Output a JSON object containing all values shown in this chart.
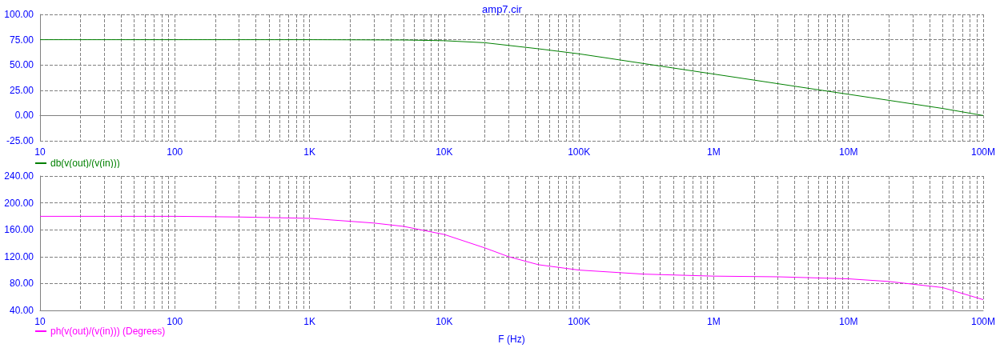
{
  "chart_data": [
    {
      "type": "line",
      "title": "amp7.cir",
      "log": "x",
      "grid": true,
      "legend": "bottom left",
      "marker": "none",
      "line_style": "solid",
      "x": [
        10,
        100,
        1000,
        5000,
        10000,
        20000,
        50000,
        100000,
        200000,
        500000,
        1000000,
        2000000,
        5000000,
        10000000,
        20000000,
        50000000,
        100000000
      ],
      "series": [
        {
          "name": "db(v(out)/(v(in)))",
          "color": "#008000",
          "values": [
            75,
            75,
            75,
            74.7,
            74,
            72,
            66,
            61,
            55,
            47,
            41,
            35,
            27,
            21,
            15,
            7,
            0
          ]
        }
      ],
      "xlim": [
        10,
        100000000
      ],
      "xticks": [
        {
          "value": 10,
          "label": "10"
        },
        {
          "value": 20,
          "label": null
        },
        {
          "value": 30,
          "label": null
        },
        {
          "value": 40,
          "label": null
        },
        {
          "value": 50,
          "label": null
        },
        {
          "value": 60,
          "label": null
        },
        {
          "value": 70,
          "label": null
        },
        {
          "value": 80,
          "label": null
        },
        {
          "value": 90,
          "label": null
        },
        {
          "value": 100,
          "label": "100"
        },
        {
          "value": 200,
          "label": null
        },
        {
          "value": 300,
          "label": null
        },
        {
          "value": 400,
          "label": null
        },
        {
          "value": 500,
          "label": null
        },
        {
          "value": 600,
          "label": null
        },
        {
          "value": 700,
          "label": null
        },
        {
          "value": 800,
          "label": null
        },
        {
          "value": 900,
          "label": null
        },
        {
          "value": 1000,
          "label": "1K"
        },
        {
          "value": 2000,
          "label": null
        },
        {
          "value": 3000,
          "label": null
        },
        {
          "value": 4000,
          "label": null
        },
        {
          "value": 5000,
          "label": null
        },
        {
          "value": 6000,
          "label": null
        },
        {
          "value": 7000,
          "label": null
        },
        {
          "value": 8000,
          "label": null
        },
        {
          "value": 9000,
          "label": null
        },
        {
          "value": 10000,
          "label": "10K"
        },
        {
          "value": 20000,
          "label": null
        },
        {
          "value": 30000,
          "label": null
        },
        {
          "value": 40000,
          "label": null
        },
        {
          "value": 50000,
          "label": null
        },
        {
          "value": 60000,
          "label": null
        },
        {
          "value": 70000,
          "label": null
        },
        {
          "value": 80000,
          "label": null
        },
        {
          "value": 90000,
          "label": null
        },
        {
          "value": 100000,
          "label": "100K"
        },
        {
          "value": 200000,
          "label": null
        },
        {
          "value": 300000,
          "label": null
        },
        {
          "value": 400000,
          "label": null
        },
        {
          "value": 500000,
          "label": null
        },
        {
          "value": 600000,
          "label": null
        },
        {
          "value": 700000,
          "label": null
        },
        {
          "value": 800000,
          "label": null
        },
        {
          "value": 900000,
          "label": null
        },
        {
          "value": 1000000,
          "label": "1M"
        },
        {
          "value": 2000000,
          "label": null
        },
        {
          "value": 3000000,
          "label": null
        },
        {
          "value": 4000000,
          "label": null
        },
        {
          "value": 5000000,
          "label": null
        },
        {
          "value": 6000000,
          "label": null
        },
        {
          "value": 7000000,
          "label": null
        },
        {
          "value": 8000000,
          "label": null
        },
        {
          "value": 9000000,
          "label": null
        },
        {
          "value": 10000000,
          "label": "10M"
        },
        {
          "value": 20000000,
          "label": null
        },
        {
          "value": 30000000,
          "label": null
        },
        {
          "value": 40000000,
          "label": null
        },
        {
          "value": 50000000,
          "label": null
        },
        {
          "value": 60000000,
          "label": null
        },
        {
          "value": 70000000,
          "label": null
        },
        {
          "value": 80000000,
          "label": null
        },
        {
          "value": 90000000,
          "label": null
        },
        {
          "value": 100000000,
          "label": "100M"
        }
      ],
      "ylim": [
        -25,
        100
      ],
      "yticks": [
        {
          "value": -25,
          "label": "-25.00"
        },
        {
          "value": 0,
          "label": "0.00"
        },
        {
          "value": 25,
          "label": "25.00"
        },
        {
          "value": 50,
          "label": "50.00"
        },
        {
          "value": 75,
          "label": "75.00"
        },
        {
          "value": 100,
          "label": "100.00"
        }
      ]
    },
    {
      "type": "line",
      "xlabel": "F (Hz)",
      "log": "x",
      "grid": true,
      "legend": "bottom left",
      "marker": "none",
      "line_style": "solid",
      "x": [
        10,
        100,
        300,
        1000,
        3000,
        5000,
        10000,
        20000,
        30000,
        50000,
        100000,
        300000,
        1000000,
        3000000,
        10000000,
        20000000,
        50000000,
        100000000
      ],
      "series": [
        {
          "name": "ph(v(out)/(v(in))) (Degrees)",
          "color": "#ff00ff",
          "values": [
            180,
            180,
            179,
            177,
            170,
            165,
            153,
            133,
            120,
            108,
            100,
            94,
            91,
            90,
            87,
            83,
            74,
            56
          ]
        }
      ],
      "xlim": [
        10,
        100000000
      ],
      "xticks": [
        {
          "value": 10,
          "label": "10"
        },
        {
          "value": 20,
          "label": null
        },
        {
          "value": 30,
          "label": null
        },
        {
          "value": 40,
          "label": null
        },
        {
          "value": 50,
          "label": null
        },
        {
          "value": 60,
          "label": null
        },
        {
          "value": 70,
          "label": null
        },
        {
          "value": 80,
          "label": null
        },
        {
          "value": 90,
          "label": null
        },
        {
          "value": 100,
          "label": "100"
        },
        {
          "value": 200,
          "label": null
        },
        {
          "value": 300,
          "label": null
        },
        {
          "value": 400,
          "label": null
        },
        {
          "value": 500,
          "label": null
        },
        {
          "value": 600,
          "label": null
        },
        {
          "value": 700,
          "label": null
        },
        {
          "value": 800,
          "label": null
        },
        {
          "value": 900,
          "label": null
        },
        {
          "value": 1000,
          "label": "1K"
        },
        {
          "value": 2000,
          "label": null
        },
        {
          "value": 3000,
          "label": null
        },
        {
          "value": 4000,
          "label": null
        },
        {
          "value": 5000,
          "label": null
        },
        {
          "value": 6000,
          "label": null
        },
        {
          "value": 7000,
          "label": null
        },
        {
          "value": 8000,
          "label": null
        },
        {
          "value": 9000,
          "label": null
        },
        {
          "value": 10000,
          "label": "10K"
        },
        {
          "value": 20000,
          "label": null
        },
        {
          "value": 30000,
          "label": null
        },
        {
          "value": 40000,
          "label": null
        },
        {
          "value": 50000,
          "label": null
        },
        {
          "value": 60000,
          "label": null
        },
        {
          "value": 70000,
          "label": null
        },
        {
          "value": 80000,
          "label": null
        },
        {
          "value": 90000,
          "label": null
        },
        {
          "value": 100000,
          "label": "100K"
        },
        {
          "value": 200000,
          "label": null
        },
        {
          "value": 300000,
          "label": null
        },
        {
          "value": 400000,
          "label": null
        },
        {
          "value": 500000,
          "label": null
        },
        {
          "value": 600000,
          "label": null
        },
        {
          "value": 700000,
          "label": null
        },
        {
          "value": 800000,
          "label": null
        },
        {
          "value": 900000,
          "label": null
        },
        {
          "value": 1000000,
          "label": "1M"
        },
        {
          "value": 2000000,
          "label": null
        },
        {
          "value": 3000000,
          "label": null
        },
        {
          "value": 4000000,
          "label": null
        },
        {
          "value": 5000000,
          "label": null
        },
        {
          "value": 6000000,
          "label": null
        },
        {
          "value": 7000000,
          "label": null
        },
        {
          "value": 8000000,
          "label": null
        },
        {
          "value": 9000000,
          "label": null
        },
        {
          "value": 10000000,
          "label": "10M"
        },
        {
          "value": 20000000,
          "label": null
        },
        {
          "value": 30000000,
          "label": null
        },
        {
          "value": 40000000,
          "label": null
        },
        {
          "value": 50000000,
          "label": null
        },
        {
          "value": 60000000,
          "label": null
        },
        {
          "value": 70000000,
          "label": null
        },
        {
          "value": 80000000,
          "label": null
        },
        {
          "value": 90000000,
          "label": null
        },
        {
          "value": 100000000,
          "label": "100M"
        }
      ],
      "ylim": [
        40,
        240
      ],
      "yticks": [
        {
          "value": 40,
          "label": "40.00"
        },
        {
          "value": 80,
          "label": "80.00"
        },
        {
          "value": 120,
          "label": "120.00"
        },
        {
          "value": 160,
          "label": "160.00"
        },
        {
          "value": 200,
          "label": "200.00"
        },
        {
          "value": 240,
          "label": "240.00"
        }
      ]
    }
  ]
}
